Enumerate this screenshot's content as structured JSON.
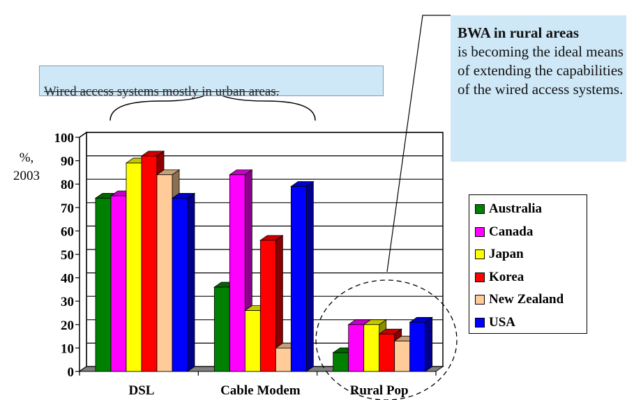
{
  "chart_data": {
    "type": "bar",
    "categories": [
      "DSL",
      "Cable Modem",
      "Rural Pop"
    ],
    "series": [
      {
        "name": "Australia",
        "color": "#008000",
        "values": [
          74,
          36,
          8
        ]
      },
      {
        "name": "Canada",
        "color": "#ff00ff",
        "values": [
          75,
          84,
          20
        ]
      },
      {
        "name": "Japan",
        "color": "#ffff00",
        "values": [
          89,
          26,
          20
        ]
      },
      {
        "name": "Korea",
        "color": "#ff0000",
        "values": [
          92,
          56,
          16
        ]
      },
      {
        "name": "New Zealand",
        "color": "#ffcc99",
        "values": [
          84,
          10,
          13
        ]
      },
      {
        "name": "USA",
        "color": "#0000ff",
        "values": [
          74,
          79,
          21
        ]
      }
    ],
    "ylabel": "%, 2003",
    "ylabel_lines": [
      "%,",
      "2003"
    ],
    "ylim": [
      0,
      100
    ],
    "yticks": [
      0,
      10,
      20,
      30,
      40,
      50,
      60,
      70,
      80,
      90,
      100
    ],
    "grid": true,
    "legend_position": "right"
  },
  "annotations": {
    "wired_banner": "Wired access systems mostly in urban areas.",
    "bwa_title": "BWA in rural areas",
    "bwa_body": "is becoming the ideal means of extending the capabilities of the wired access systems."
  }
}
